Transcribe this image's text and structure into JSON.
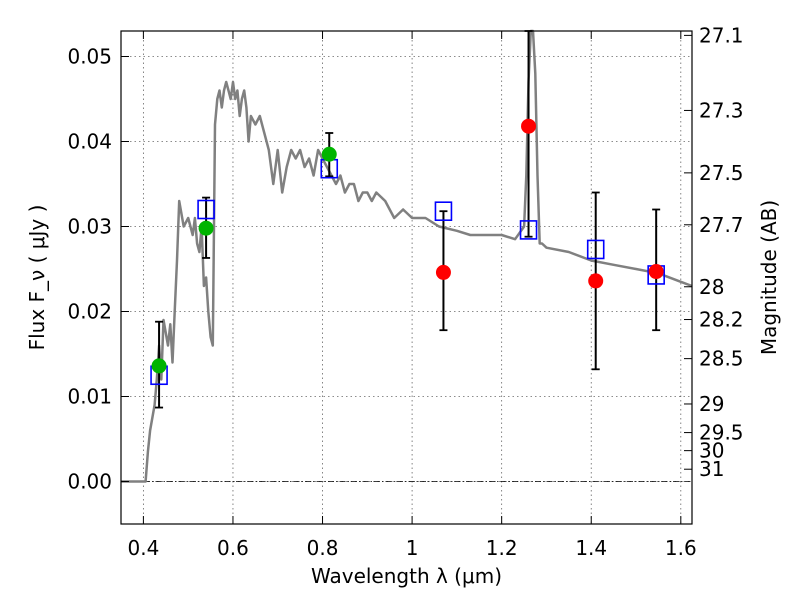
{
  "chart_data": {
    "type": "scatter",
    "xlabel": "Wavelength  λ (μm)",
    "ylabel": "Flux  F_ν  ( μJy )",
    "y2label": "Magnitude (AB)",
    "xlim": [
      0.35,
      1.625
    ],
    "ylim": [
      -0.005,
      0.053
    ],
    "grid": true,
    "x_ticks": [
      {
        "value": 0.4,
        "label": "0.4"
      },
      {
        "value": 0.6,
        "label": "0.6"
      },
      {
        "value": 0.8,
        "label": "0.8"
      },
      {
        "value": 1.0,
        "label": "1"
      },
      {
        "value": 1.2,
        "label": "1.2"
      },
      {
        "value": 1.4,
        "label": "1.4"
      },
      {
        "value": 1.6,
        "label": "1.6"
      }
    ],
    "y_ticks": [
      {
        "value": 0.0,
        "label": "0.00"
      },
      {
        "value": 0.01,
        "label": "0.01"
      },
      {
        "value": 0.02,
        "label": "0.02"
      },
      {
        "value": 0.03,
        "label": "0.03"
      },
      {
        "value": 0.04,
        "label": "0.04"
      },
      {
        "value": 0.05,
        "label": "0.05"
      }
    ],
    "y2_ticks": [
      {
        "value": 27.1,
        "label": "27.1"
      },
      {
        "value": 27.3,
        "label": "27.3"
      },
      {
        "value": 27.5,
        "label": "27.5"
      },
      {
        "value": 27.7,
        "label": "27.7"
      },
      {
        "value": 28.0,
        "label": "28"
      },
      {
        "value": 28.2,
        "label": "28.2"
      },
      {
        "value": 28.5,
        "label": "28.5"
      },
      {
        "value": 29.0,
        "label": "29"
      },
      {
        "value": 29.5,
        "label": "29.5"
      },
      {
        "value": 30.0,
        "label": "30"
      },
      {
        "value": 31.0,
        "label": "31"
      }
    ],
    "sed_model": {
      "x": [
        0.35,
        0.405,
        0.41,
        0.415,
        0.425,
        0.43,
        0.435,
        0.44,
        0.445,
        0.455,
        0.46,
        0.465,
        0.47,
        0.475,
        0.48,
        0.49,
        0.5,
        0.51,
        0.515,
        0.52,
        0.525,
        0.53,
        0.535,
        0.54,
        0.545,
        0.55,
        0.555,
        0.56,
        0.565,
        0.57,
        0.575,
        0.58,
        0.585,
        0.59,
        0.595,
        0.6,
        0.605,
        0.61,
        0.615,
        0.62,
        0.625,
        0.63,
        0.635,
        0.64,
        0.65,
        0.66,
        0.67,
        0.68,
        0.69,
        0.7,
        0.71,
        0.72,
        0.73,
        0.74,
        0.75,
        0.76,
        0.77,
        0.78,
        0.79,
        0.8,
        0.81,
        0.82,
        0.83,
        0.84,
        0.85,
        0.86,
        0.87,
        0.88,
        0.89,
        0.9,
        0.91,
        0.92,
        0.94,
        0.96,
        0.98,
        1.0,
        1.03,
        1.06,
        1.1,
        1.13,
        1.16,
        1.2,
        1.23,
        1.25,
        1.255,
        1.26,
        1.265,
        1.27,
        1.275,
        1.28,
        1.285,
        1.29,
        1.3,
        1.35,
        1.4,
        1.45,
        1.5,
        1.55,
        1.6,
        1.625
      ],
      "y": [
        0.0,
        0.0,
        0.0035,
        0.006,
        0.009,
        0.012,
        0.016,
        0.012,
        0.019,
        0.016,
        0.0185,
        0.014,
        0.02,
        0.026,
        0.033,
        0.03,
        0.031,
        0.029,
        0.031,
        0.028,
        0.027,
        0.03,
        0.023,
        0.024,
        0.02,
        0.017,
        0.016,
        0.042,
        0.045,
        0.046,
        0.044,
        0.046,
        0.047,
        0.046,
        0.045,
        0.047,
        0.045,
        0.046,
        0.043,
        0.045,
        0.046,
        0.044,
        0.04,
        0.043,
        0.042,
        0.043,
        0.041,
        0.039,
        0.035,
        0.039,
        0.034,
        0.037,
        0.039,
        0.038,
        0.039,
        0.037,
        0.038,
        0.036,
        0.039,
        0.038,
        0.037,
        0.036,
        0.035,
        0.036,
        0.034,
        0.035,
        0.035,
        0.033,
        0.034,
        0.034,
        0.033,
        0.034,
        0.033,
        0.031,
        0.032,
        0.031,
        0.031,
        0.03,
        0.0295,
        0.029,
        0.029,
        0.029,
        0.0285,
        0.03,
        0.036,
        0.047,
        0.055,
        0.055,
        0.048,
        0.036,
        0.028,
        0.028,
        0.0275,
        0.027,
        0.026,
        0.0255,
        0.025,
        0.0245,
        0.0235,
        0.023
      ]
    },
    "model_photometry": {
      "x": [
        0.435,
        0.54,
        0.815,
        1.07,
        1.26,
        1.41,
        1.545
      ],
      "y": [
        0.0125,
        0.032,
        0.0368,
        0.0318,
        0.0296,
        0.0273,
        0.0243
      ]
    },
    "optical_detections": {
      "x": [
        0.435,
        0.54,
        0.815
      ],
      "y": [
        0.0136,
        0.0298,
        0.0385
      ],
      "err_low": [
        0.0087,
        0.0263,
        0.0359
      ],
      "err_high": [
        0.0188,
        0.0334,
        0.041
      ]
    },
    "nir_detections": {
      "x": [
        1.07,
        1.26,
        1.41,
        1.545
      ],
      "y": [
        0.0246,
        0.0418,
        0.0236,
        0.0247
      ],
      "err_low": [
        0.0178,
        0.0288,
        0.0132,
        0.0178
      ],
      "err_high": [
        0.0318,
        0.053,
        0.034,
        0.032
      ]
    },
    "colors": {
      "model_line": "#808080",
      "model_photometry": "#0000ff",
      "optical_detections": "#00b400",
      "nir_detections": "#ff0000",
      "error_bars": "#000000"
    }
  }
}
